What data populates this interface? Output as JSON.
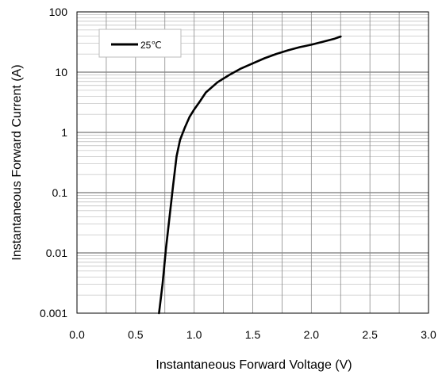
{
  "chart_data": {
    "type": "line",
    "xlabel": "Instantaneous Forward Voltage (V)",
    "ylabel": "Instantaneous Forward Current (A)",
    "x_scale": "linear",
    "y_scale": "log",
    "xlim": [
      0.0,
      3.0
    ],
    "ylim": [
      0.001,
      100
    ],
    "x_ticks": [
      "0.0",
      "0.5",
      "1.0",
      "1.5",
      "2.0",
      "2.5",
      "3.0"
    ],
    "y_ticks": [
      "0.001",
      "0.01",
      "0.1",
      "1",
      "10",
      "100"
    ],
    "grid": true,
    "legend_position": "top-left",
    "series": [
      {
        "name": "25℃",
        "color": "#000000",
        "x": [
          0.7,
          0.73,
          0.76,
          0.79,
          0.82,
          0.85,
          0.88,
          0.92,
          0.96,
          1.0,
          1.05,
          1.1,
          1.2,
          1.3,
          1.4,
          1.5,
          1.6,
          1.7,
          1.8,
          1.9,
          2.0,
          2.1,
          2.2,
          2.25
        ],
        "y": [
          0.001,
          0.003,
          0.012,
          0.04,
          0.13,
          0.4,
          0.75,
          1.2,
          1.8,
          2.4,
          3.3,
          4.6,
          6.8,
          9.0,
          11.5,
          14.0,
          17.0,
          20.0,
          23.0,
          26.0,
          28.5,
          32.0,
          36.0,
          39.0
        ]
      }
    ]
  }
}
